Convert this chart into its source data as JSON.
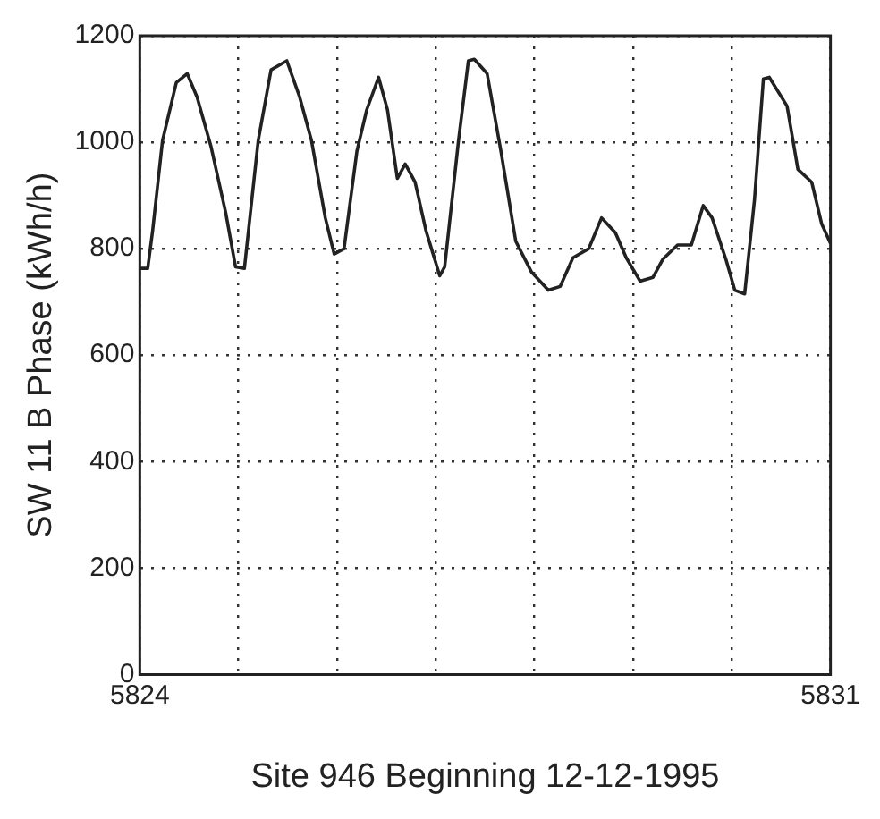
{
  "chart_data": {
    "type": "line",
    "xlabel": "Site 946 Beginning 12-12-1995",
    "ylabel": "SW 11 B Phase (kWh/h)",
    "x": [
      5824,
      5824.08,
      5824.13,
      5824.23,
      5824.37,
      5824.48,
      5824.58,
      5824.72,
      5824.87,
      5824.97,
      5825.06,
      5825.2,
      5825.33,
      5825.49,
      5825.62,
      5825.74,
      5825.88,
      5825.97,
      5826.07,
      5826.2,
      5826.3,
      5826.42,
      5826.51,
      5826.61,
      5826.69,
      5826.79,
      5826.9,
      5827.04,
      5827.09,
      5827.23,
      5827.33,
      5827.39,
      5827.52,
      5827.66,
      5827.81,
      5827.97,
      5828.14,
      5828.26,
      5828.39,
      5828.55,
      5828.68,
      5828.82,
      5828.93,
      5829.07,
      5829.2,
      5829.3,
      5829.45,
      5829.59,
      5829.71,
      5829.8,
      5829.94,
      5830.03,
      5830.13,
      5830.23,
      5830.32,
      5830.38,
      5830.56,
      5830.67,
      5830.81,
      5830.91,
      5831
    ],
    "series": [
      {
        "color": "#222222",
        "values": [
          763,
          763,
          834,
          1003,
          1112,
          1129,
          1085,
          993,
          868,
          766,
          763,
          1003,
          1136,
          1153,
          1085,
          1003,
          858,
          790,
          800,
          983,
          1061,
          1122,
          1061,
          932,
          959,
          925,
          834,
          749,
          766,
          1003,
          1153,
          1156,
          1129,
          983,
          814,
          756,
          722,
          729,
          783,
          800,
          858,
          830,
          783,
          739,
          746,
          780,
          807,
          807,
          881,
          858,
          780,
          722,
          715,
          892,
          1119,
          1122,
          1068,
          949,
          925,
          847,
          810
        ]
      }
    ],
    "xlim": [
      5824,
      5831
    ],
    "xticks": [
      5824,
      {
        "value": 5825,
        "label": null
      },
      {
        "value": 5826,
        "label": null
      },
      {
        "value": 5827,
        "label": null
      },
      {
        "value": 5828,
        "label": null
      },
      {
        "value": 5829,
        "label": null
      },
      {
        "value": 5830,
        "label": null
      },
      5831
    ],
    "ylim": [
      0,
      1200
    ],
    "yticks": [
      0,
      200,
      400,
      600,
      800,
      1000,
      1200
    ],
    "grid": true,
    "legend": false,
    "marker": "none",
    "line_style": "solid"
  }
}
